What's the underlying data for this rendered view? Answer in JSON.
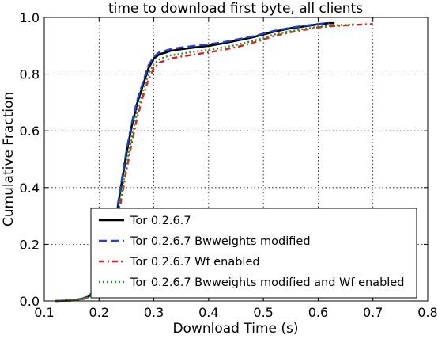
{
  "chart_data": {
    "type": "line",
    "title": "time to download first byte, all clients",
    "xlabel": "Download Time (s)",
    "ylabel": "Cumulative Fraction",
    "xlim": [
      0.1,
      0.8
    ],
    "ylim": [
      0.0,
      1.0
    ],
    "xticks": [
      "0.1",
      "0.2",
      "0.3",
      "0.4",
      "0.5",
      "0.6",
      "0.7",
      "0.8"
    ],
    "yticks": [
      "0.0",
      "0.2",
      "0.4",
      "0.6",
      "0.8",
      "1.0"
    ],
    "grid": true,
    "legend_position": "bottom-right",
    "series": [
      {
        "name": "Tor 0.2.6.7",
        "color": "#000000",
        "style": "solid",
        "x": [
          0.12,
          0.15,
          0.17,
          0.18,
          0.19,
          0.2,
          0.21,
          0.22,
          0.23,
          0.24,
          0.25,
          0.26,
          0.27,
          0.28,
          0.29,
          0.3,
          0.31,
          0.32,
          0.33,
          0.35,
          0.37,
          0.4,
          0.43,
          0.45,
          0.48,
          0.5,
          0.52,
          0.55,
          0.58,
          0.6,
          0.62,
          0.63
        ],
        "y": [
          0.0,
          0.002,
          0.008,
          0.015,
          0.03,
          0.06,
          0.11,
          0.18,
          0.28,
          0.4,
          0.52,
          0.62,
          0.7,
          0.76,
          0.82,
          0.855,
          0.87,
          0.875,
          0.882,
          0.888,
          0.893,
          0.9,
          0.91,
          0.918,
          0.93,
          0.94,
          0.95,
          0.962,
          0.97,
          0.976,
          0.98,
          0.98
        ]
      },
      {
        "name": "Tor 0.2.6.7 Bwweights modified",
        "color": "#1f3fd6",
        "style": "dashed",
        "x": [
          0.12,
          0.15,
          0.17,
          0.18,
          0.19,
          0.2,
          0.21,
          0.22,
          0.23,
          0.24,
          0.25,
          0.26,
          0.27,
          0.28,
          0.29,
          0.3,
          0.31,
          0.32,
          0.33,
          0.35,
          0.37,
          0.4,
          0.43,
          0.45,
          0.48,
          0.5,
          0.52,
          0.55,
          0.58,
          0.6,
          0.62
        ],
        "y": [
          0.0,
          0.002,
          0.009,
          0.017,
          0.033,
          0.065,
          0.12,
          0.19,
          0.29,
          0.41,
          0.53,
          0.63,
          0.71,
          0.77,
          0.83,
          0.862,
          0.877,
          0.882,
          0.888,
          0.894,
          0.899,
          0.905,
          0.914,
          0.922,
          0.933,
          0.943,
          0.953,
          0.964,
          0.972,
          0.977,
          0.98
        ]
      },
      {
        "name": "Tor 0.2.6.7 Wf enabled",
        "color": "#e0201f",
        "style": "dashdot",
        "x": [
          0.12,
          0.15,
          0.17,
          0.18,
          0.19,
          0.2,
          0.21,
          0.22,
          0.23,
          0.24,
          0.25,
          0.26,
          0.27,
          0.28,
          0.29,
          0.3,
          0.31,
          0.32,
          0.33,
          0.35,
          0.37,
          0.4,
          0.43,
          0.45,
          0.48,
          0.5,
          0.52,
          0.55,
          0.58,
          0.6,
          0.63,
          0.65,
          0.68,
          0.7
        ],
        "y": [
          0.0,
          0.002,
          0.006,
          0.012,
          0.024,
          0.05,
          0.09,
          0.15,
          0.24,
          0.35,
          0.46,
          0.56,
          0.65,
          0.72,
          0.78,
          0.82,
          0.84,
          0.848,
          0.855,
          0.862,
          0.868,
          0.877,
          0.887,
          0.895,
          0.91,
          0.922,
          0.935,
          0.948,
          0.958,
          0.965,
          0.97,
          0.972,
          0.975,
          0.977
        ]
      },
      {
        "name": "Tor 0.2.6.7 Bwweights modified and Wf enabled",
        "color": "#1a9a1a",
        "style": "dotted",
        "x": [
          0.12,
          0.15,
          0.17,
          0.18,
          0.19,
          0.2,
          0.21,
          0.22,
          0.23,
          0.24,
          0.25,
          0.26,
          0.27,
          0.28,
          0.29,
          0.3,
          0.31,
          0.32,
          0.33,
          0.35,
          0.37,
          0.4,
          0.43,
          0.45,
          0.48,
          0.5,
          0.52,
          0.55,
          0.58,
          0.6,
          0.63,
          0.65,
          0.67
        ],
        "y": [
          0.0,
          0.002,
          0.007,
          0.013,
          0.026,
          0.055,
          0.1,
          0.16,
          0.25,
          0.37,
          0.48,
          0.58,
          0.67,
          0.74,
          0.8,
          0.835,
          0.852,
          0.86,
          0.866,
          0.872,
          0.878,
          0.886,
          0.895,
          0.903,
          0.917,
          0.928,
          0.94,
          0.952,
          0.961,
          0.967,
          0.972,
          0.974,
          0.976
        ]
      }
    ]
  }
}
